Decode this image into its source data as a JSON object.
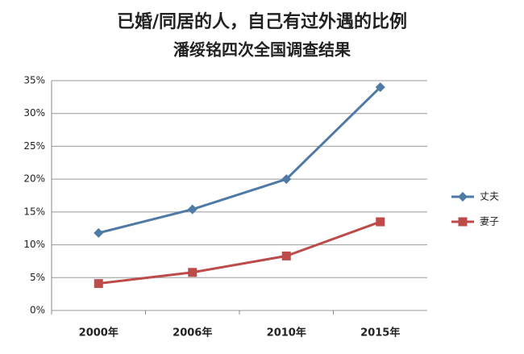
{
  "chart_data": {
    "type": "line",
    "title": "已婚/同居的人，自己有过外遇的比例",
    "subtitle": "潘绥铭四次全国调查结果",
    "categories": [
      "2000年",
      "2006年",
      "2010年",
      "2015年"
    ],
    "series": [
      {
        "name": "丈夫",
        "color": "#4f7aa6",
        "marker": "diamond",
        "values": [
          11.8,
          15.4,
          20,
          34
        ]
      },
      {
        "name": "妻子",
        "color": "#bc4b4a",
        "marker": "square",
        "values": [
          4.1,
          5.8,
          8.3,
          13.5
        ]
      }
    ],
    "ylim": [
      0,
      35
    ],
    "yticks": [
      {
        "value": 0,
        "label": "0%"
      },
      {
        "value": 5,
        "label": "5%"
      },
      {
        "value": 10,
        "label": "10%"
      },
      {
        "value": 15,
        "label": "15%"
      },
      {
        "value": 20,
        "label": "20%"
      },
      {
        "value": 25,
        "label": "25%"
      },
      {
        "value": 30,
        "label": "30%"
      },
      {
        "value": 35,
        "label": "35%"
      }
    ],
    "grid": true,
    "legend": "right"
  }
}
